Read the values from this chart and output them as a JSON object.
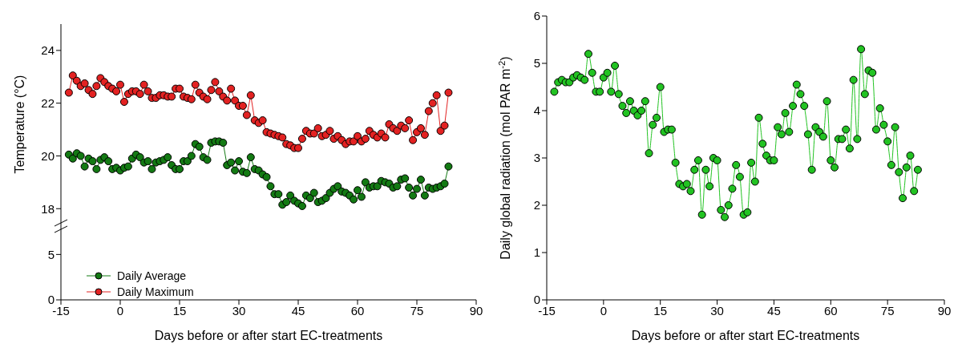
{
  "chart_data": [
    {
      "type": "line",
      "ylabel": "Temperature (°C)",
      "xlim": [
        -15,
        90
      ],
      "ylim": [
        17.4,
        25
      ],
      "yticks": [
        18,
        20,
        22,
        24
      ],
      "tick_labels": "y",
      "legend": "bottom left",
      "marker": "circle",
      "x": [
        -13,
        -12,
        -11,
        -10,
        -9,
        -8,
        -7,
        -6,
        -5,
        -4,
        -3,
        -2,
        -1,
        0,
        1,
        2,
        3,
        4,
        5,
        6,
        7,
        8,
        9,
        10,
        11,
        12,
        13,
        14,
        15,
        16,
        17,
        18,
        19,
        20,
        21,
        22,
        23,
        24,
        25,
        26,
        27,
        28,
        29,
        30,
        31,
        32,
        33,
        34,
        35,
        36,
        37,
        38,
        39,
        40,
        41,
        42,
        43,
        44,
        45,
        46,
        47,
        48,
        49,
        50,
        51,
        52,
        53,
        54,
        55,
        56,
        57,
        58,
        59,
        60,
        61,
        62,
        63,
        64,
        65,
        66,
        67,
        68,
        69,
        70,
        71,
        72,
        73,
        74,
        75,
        76,
        77,
        78,
        79,
        80,
        81,
        82,
        83
      ],
      "series": [
        {
          "name": "Daily Average",
          "color": "#137a13",
          "values": [
            20.05,
            19.9,
            20.1,
            20.0,
            19.6,
            19.9,
            19.8,
            19.5,
            19.85,
            19.95,
            19.8,
            19.5,
            19.55,
            19.45,
            19.55,
            19.6,
            19.9,
            20.05,
            19.95,
            19.75,
            19.8,
            19.5,
            19.75,
            19.8,
            19.85,
            19.95,
            19.65,
            19.5,
            19.5,
            19.8,
            19.8,
            20.0,
            20.45,
            20.35,
            19.95,
            19.85,
            20.5,
            20.55,
            20.55,
            20.5,
            19.65,
            19.75,
            19.45,
            19.8,
            19.4,
            19.35,
            19.95,
            19.5,
            19.45,
            19.3,
            19.2,
            18.85,
            18.55,
            18.55,
            18.15,
            18.25,
            18.5,
            18.3,
            18.2,
            18.1,
            18.5,
            18.4,
            18.6,
            18.25,
            18.3,
            18.4,
            18.6,
            18.75,
            18.85,
            18.65,
            18.6,
            18.5,
            18.35,
            18.7,
            18.45,
            19.0,
            18.8,
            18.85,
            18.85,
            19.05,
            19.0,
            18.95,
            18.8,
            18.85,
            19.1,
            19.15,
            18.8,
            18.5,
            18.75,
            19.1,
            18.5,
            18.8,
            18.75,
            18.8,
            18.85,
            18.95,
            19.6
          ]
        },
        {
          "name": "Daily Maximum",
          "color": "#e32222",
          "values": [
            22.4,
            23.05,
            22.85,
            22.65,
            22.75,
            22.5,
            22.35,
            22.65,
            22.95,
            22.8,
            22.65,
            22.55,
            22.45,
            22.7,
            22.05,
            22.35,
            22.45,
            22.45,
            22.35,
            22.7,
            22.45,
            22.2,
            22.2,
            22.3,
            22.3,
            22.25,
            22.25,
            22.55,
            22.55,
            22.25,
            22.2,
            22.15,
            22.7,
            22.4,
            22.25,
            22.15,
            22.5,
            22.8,
            22.45,
            22.25,
            22.1,
            22.55,
            22.1,
            21.9,
            21.9,
            21.55,
            22.3,
            21.35,
            21.25,
            21.35,
            20.9,
            20.85,
            20.8,
            20.75,
            20.7,
            20.45,
            20.4,
            20.3,
            20.3,
            20.65,
            20.95,
            20.85,
            20.85,
            21.05,
            20.75,
            20.8,
            20.95,
            20.65,
            20.75,
            20.6,
            20.45,
            20.55,
            20.55,
            20.75,
            20.55,
            20.65,
            20.95,
            20.8,
            20.7,
            20.85,
            20.7,
            21.2,
            21.05,
            20.95,
            21.15,
            21.05,
            21.35,
            20.6,
            20.9,
            21.05,
            20.8,
            21.7,
            22.0,
            22.3,
            20.95,
            21.15,
            22.4
          ]
        }
      ]
    },
    {
      "type": "line",
      "xlabel": "Days before or after start EC-treatments",
      "xlim": [
        -15,
        90
      ],
      "xticks": [
        -15,
        0,
        15,
        30,
        45,
        60,
        75,
        90
      ],
      "ylim": [
        0,
        8.3
      ],
      "yticks": [
        0,
        5
      ]
    },
    {
      "type": "line",
      "xlabel": "Days before or after start EC-treatments",
      "ylabel": "Daily global radiation (mol PAR m$^{-2}$)",
      "xlim": [
        -15,
        90
      ],
      "xticks": [
        -15,
        0,
        15,
        30,
        45,
        60,
        75,
        90
      ],
      "ylim": [
        0,
        6
      ],
      "yticks": [
        0,
        1,
        2,
        3,
        4,
        5,
        6
      ],
      "marker": "circle",
      "x": [
        -13,
        -12,
        -11,
        -10,
        -9,
        -8,
        -7,
        -6,
        -5,
        -4,
        -3,
        -2,
        -1,
        0,
        1,
        2,
        3,
        4,
        5,
        6,
        7,
        8,
        9,
        10,
        11,
        12,
        13,
        14,
        15,
        16,
        17,
        18,
        19,
        20,
        21,
        22,
        23,
        24,
        25,
        26,
        27,
        28,
        29,
        30,
        31,
        32,
        33,
        34,
        35,
        36,
        37,
        38,
        39,
        40,
        41,
        42,
        43,
        44,
        45,
        46,
        47,
        48,
        49,
        50,
        51,
        52,
        53,
        54,
        55,
        56,
        57,
        58,
        59,
        60,
        61,
        62,
        63,
        64,
        65,
        66,
        67,
        68,
        69,
        70,
        71,
        72,
        73,
        74,
        75,
        76,
        77,
        78,
        79,
        80,
        81,
        82,
        83
      ],
      "series": [
        {
          "color": "#22c322",
          "values": [
            4.4,
            4.6,
            4.65,
            4.6,
            4.6,
            4.7,
            4.75,
            4.7,
            4.65,
            5.2,
            4.8,
            4.4,
            4.4,
            4.7,
            4.8,
            4.4,
            4.95,
            4.35,
            4.1,
            3.95,
            4.2,
            4.0,
            3.9,
            4.0,
            4.2,
            3.1,
            3.7,
            3.85,
            4.5,
            3.55,
            3.6,
            3.6,
            2.9,
            2.45,
            2.4,
            2.45,
            2.3,
            2.75,
            2.95,
            1.8,
            2.75,
            2.4,
            3.0,
            2.95,
            1.9,
            1.75,
            2.0,
            2.35,
            2.85,
            2.6,
            1.8,
            1.85,
            2.9,
            2.5,
            3.85,
            3.3,
            3.05,
            2.95,
            2.95,
            3.65,
            3.5,
            3.95,
            3.55,
            4.1,
            4.55,
            4.35,
            4.1,
            3.5,
            2.75,
            3.65,
            3.55,
            3.45,
            4.2,
            2.95,
            2.8,
            3.4,
            3.4,
            3.6,
            3.2,
            4.65,
            3.4,
            5.3,
            4.35,
            4.85,
            4.8,
            3.6,
            4.05,
            3.7,
            3.35,
            2.85,
            3.65,
            2.7,
            2.15,
            2.8,
            3.05,
            2.3,
            2.75
          ]
        }
      ]
    }
  ]
}
